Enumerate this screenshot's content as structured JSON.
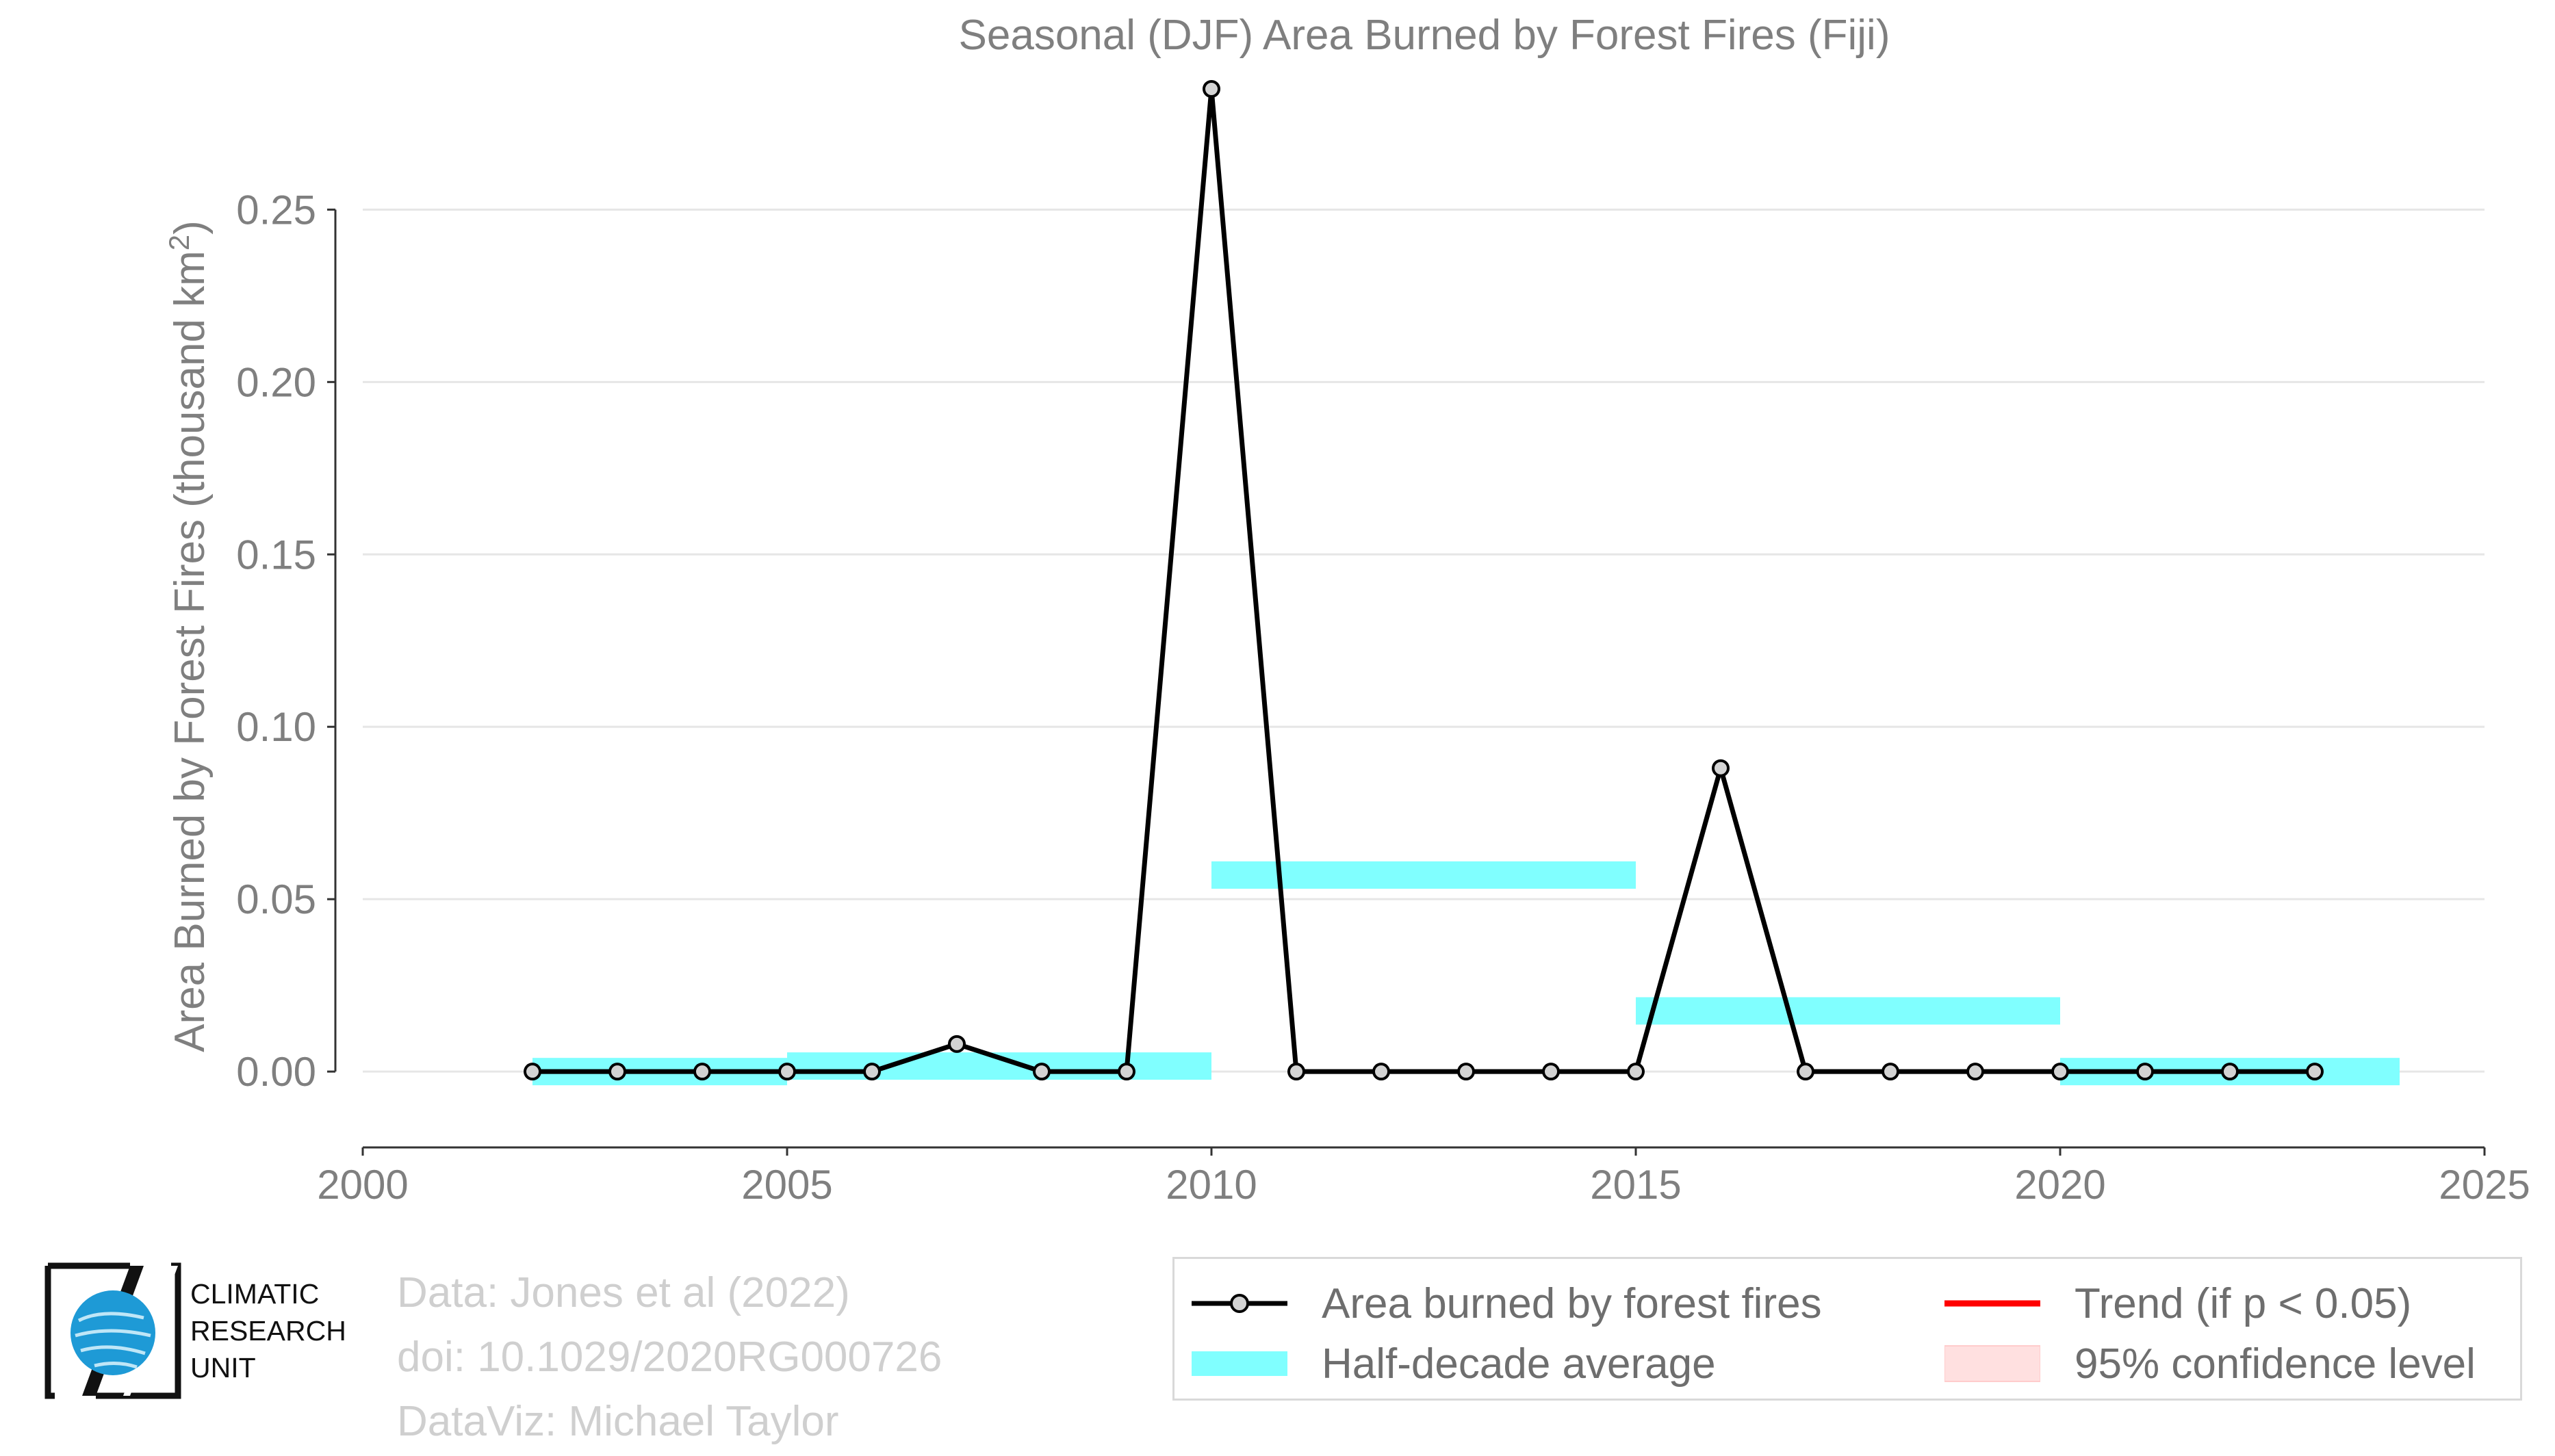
{
  "chart_data": {
    "type": "line",
    "title": "Seasonal (DJF) Area Burned by Forest Fires (Fiji)",
    "ylabel": "Area Burned by Forest Fires (thousand km",
    "ylabel_sup": "2",
    "ylabel_end": ")",
    "xlim": [
      2000,
      2025
    ],
    "ylim": [
      -0.022,
      0.285
    ],
    "xticks": [
      2000,
      2005,
      2010,
      2015,
      2020,
      2025
    ],
    "yticks": [
      0.0,
      0.05,
      0.1,
      0.15,
      0.2,
      0.25
    ],
    "ytick_labels": [
      "0.00",
      "0.05",
      "0.10",
      "0.15",
      "0.20",
      "0.25"
    ],
    "grid": true,
    "colors": {
      "line": "#000000",
      "marker_fill": "#d3d3d3",
      "average": "#80ffff",
      "trend": "#ff0000",
      "confidence": "#ffe0e0",
      "grid": "#e6e6e6",
      "axis_text": "#7f7f7f"
    },
    "series": [
      {
        "name": "Area burned by forest fires",
        "x": [
          2002,
          2003,
          2004,
          2005,
          2006,
          2007,
          2008,
          2009,
          2010,
          2011,
          2012,
          2013,
          2014,
          2015,
          2016,
          2017,
          2018,
          2019,
          2020,
          2021,
          2022,
          2023
        ],
        "y": [
          0,
          0,
          0,
          0,
          0,
          0.008,
          0,
          0,
          0.285,
          0,
          0,
          0,
          0,
          0,
          0.088,
          0,
          0,
          0,
          0,
          0,
          0,
          0
        ]
      }
    ],
    "half_decade_average": [
      {
        "x0": 2002,
        "x1": 2005,
        "y": 0.0
      },
      {
        "x0": 2005,
        "x1": 2010,
        "y": 0.0016
      },
      {
        "x0": 2010,
        "x1": 2015,
        "y": 0.057
      },
      {
        "x0": 2015,
        "x1": 2020,
        "y": 0.0176
      },
      {
        "x0": 2020,
        "x1": 2024,
        "y": 0.0
      }
    ]
  },
  "legend": {
    "series_label": "Area burned by forest fires",
    "average_label": "Half-decade average",
    "trend_label": "Trend (if p < 0.05)",
    "confidence_label": "95% confidence level"
  },
  "credits": {
    "data": "Data: Jones et al (2022)",
    "doi": "doi: 10.1029/2020RG000726",
    "dataviz": "DataViz: Michael Taylor"
  },
  "logo": {
    "line1": "CLIMATIC",
    "line2": "RESEARCH",
    "line3": "UNIT"
  }
}
